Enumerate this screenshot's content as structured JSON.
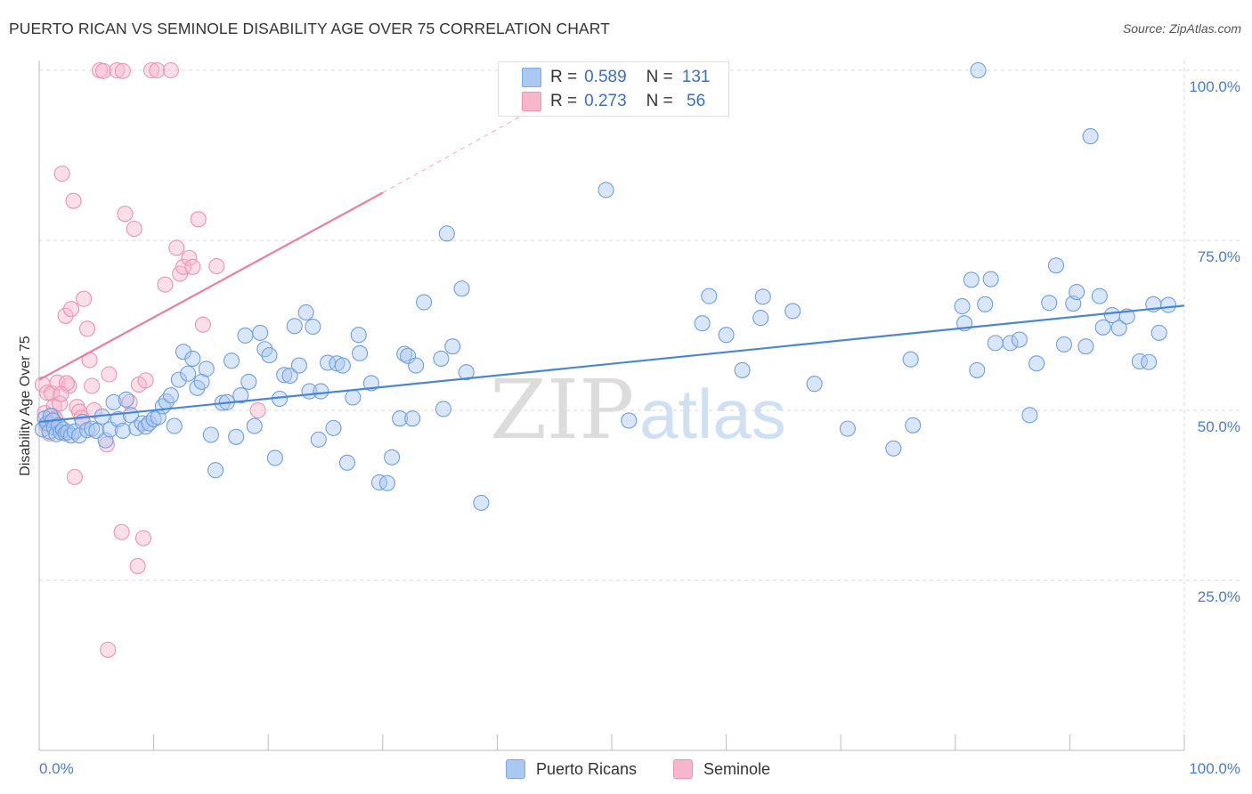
{
  "header": {
    "title": "PUERTO RICAN VS SEMINOLE DISABILITY AGE OVER 75 CORRELATION CHART",
    "source": "Source: ZipAtlas.com"
  },
  "watermark": {
    "zip": "ZIP",
    "atlas": "atlas"
  },
  "legend": {
    "rows": [
      {
        "r_label": "R =",
        "r_value": "0.589",
        "n_label": "N =",
        "n_value": "131",
        "color": "#aac8f0"
      },
      {
        "r_label": "R =",
        "r_value": "0.273",
        "n_label": "N =",
        "n_value": " 56",
        "color": "#f6b7cb"
      }
    ]
  },
  "bottom_legend": [
    {
      "label": "Puerto Ricans",
      "color": "#aac8f0"
    },
    {
      "label": "Seminole",
      "color": "#f6b7cb"
    }
  ],
  "chart_data": {
    "type": "scatter",
    "title": "PUERTO RICAN VS SEMINOLE DISABILITY AGE OVER 75 CORRELATION CHART",
    "xlabel": "",
    "ylabel": "Disability Age Over 75",
    "xlim": [
      0,
      100
    ],
    "ylim": [
      5,
      100
    ],
    "x_tick_labels": [
      "0.0%",
      "100.0%"
    ],
    "y_ticks": [
      25,
      50,
      75,
      100
    ],
    "y_tick_labels": [
      "25.0%",
      "50.0%",
      "75.0%",
      "100.0%"
    ],
    "grid": true,
    "legend_position": "top-center",
    "colors": {
      "puerto_ricans": "#4a86d8",
      "seminole": "#e87ea4",
      "puerto_fill": "#aac8f0",
      "seminole_fill": "#f6b7cb"
    },
    "series": [
      {
        "name": "Puerto Ricans",
        "points": [
          [
            0.3,
            47.2
          ],
          [
            0.5,
            48.8
          ],
          [
            0.7,
            48.1
          ],
          [
            0.9,
            46.9
          ],
          [
            1.0,
            49.2
          ],
          [
            1.2,
            48.5
          ],
          [
            1.3,
            47.5
          ],
          [
            1.5,
            46.5
          ],
          [
            1.7,
            47.8
          ],
          [
            1.9,
            46.8
          ],
          [
            2.1,
            47.2
          ],
          [
            2.3,
            46.6
          ],
          [
            2.5,
            46.8
          ],
          [
            2.8,
            46.3
          ],
          [
            3.1,
            46.9
          ],
          [
            3.5,
            46.3
          ],
          [
            3.8,
            48.3
          ],
          [
            4.2,
            47.1
          ],
          [
            4.6,
            47.3
          ],
          [
            5.0,
            47.0
          ],
          [
            5.5,
            49.1
          ],
          [
            5.8,
            45.6
          ],
          [
            6.2,
            47.2
          ],
          [
            6.5,
            51.2
          ],
          [
            6.9,
            48.7
          ],
          [
            7.3,
            47.0
          ],
          [
            7.6,
            51.6
          ],
          [
            8.0,
            49.3
          ],
          [
            8.5,
            47.4
          ],
          [
            9.0,
            48.1
          ],
          [
            9.3,
            47.6
          ],
          [
            9.6,
            48.1
          ],
          [
            10.0,
            48.7
          ],
          [
            10.4,
            49.0
          ],
          [
            10.8,
            50.6
          ],
          [
            11.1,
            51.3
          ],
          [
            11.5,
            52.2
          ],
          [
            11.8,
            47.7
          ],
          [
            12.2,
            54.5
          ],
          [
            12.6,
            58.6
          ],
          [
            13.0,
            55.4
          ],
          [
            13.4,
            57.6
          ],
          [
            13.8,
            53.3
          ],
          [
            14.2,
            54.2
          ],
          [
            14.6,
            56.1
          ],
          [
            15.0,
            46.4
          ],
          [
            15.4,
            41.2
          ],
          [
            16.0,
            51.1
          ],
          [
            16.4,
            51.2
          ],
          [
            16.8,
            57.3
          ],
          [
            17.2,
            46.1
          ],
          [
            17.6,
            52.2
          ],
          [
            18.0,
            61.0
          ],
          [
            18.3,
            54.2
          ],
          [
            18.8,
            47.7
          ],
          [
            19.3,
            61.4
          ],
          [
            19.7,
            59.0
          ],
          [
            20.1,
            58.1
          ],
          [
            20.6,
            43.0
          ],
          [
            21.0,
            51.7
          ],
          [
            21.4,
            55.2
          ],
          [
            21.9,
            55.1
          ],
          [
            22.3,
            62.4
          ],
          [
            22.7,
            56.6
          ],
          [
            23.3,
            64.4
          ],
          [
            23.6,
            52.8
          ],
          [
            23.9,
            62.3
          ],
          [
            24.4,
            45.7
          ],
          [
            24.6,
            52.8
          ],
          [
            25.2,
            57.0
          ],
          [
            25.7,
            47.4
          ],
          [
            26.0,
            56.9
          ],
          [
            26.5,
            56.6
          ],
          [
            26.9,
            42.3
          ],
          [
            27.4,
            51.9
          ],
          [
            27.9,
            61.1
          ],
          [
            28.0,
            58.4
          ],
          [
            29.0,
            54.0
          ],
          [
            29.7,
            39.4
          ],
          [
            30.4,
            39.3
          ],
          [
            30.8,
            43.1
          ],
          [
            31.5,
            48.8
          ],
          [
            31.9,
            58.3
          ],
          [
            32.2,
            58.0
          ],
          [
            32.6,
            48.8
          ],
          [
            32.9,
            56.6
          ],
          [
            33.6,
            65.9
          ],
          [
            35.1,
            57.6
          ],
          [
            35.3,
            50.2
          ],
          [
            35.6,
            76.0
          ],
          [
            36.1,
            59.4
          ],
          [
            36.9,
            67.9
          ],
          [
            37.3,
            55.6
          ],
          [
            49.5,
            82.4
          ],
          [
            38.6,
            36.4
          ],
          [
            51.5,
            48.5
          ],
          [
            57.9,
            62.8
          ],
          [
            58.5,
            66.8
          ],
          [
            60.0,
            61.1
          ],
          [
            61.4,
            55.9
          ],
          [
            63.0,
            63.6
          ],
          [
            63.2,
            66.7
          ],
          [
            65.8,
            64.6
          ],
          [
            67.7,
            53.9
          ],
          [
            70.6,
            47.3
          ],
          [
            74.6,
            44.4
          ],
          [
            76.1,
            57.5
          ],
          [
            76.3,
            47.8
          ],
          [
            80.6,
            65.3
          ],
          [
            80.8,
            62.8
          ],
          [
            81.4,
            69.2
          ],
          [
            81.9,
            55.9
          ],
          [
            82.6,
            65.6
          ],
          [
            83.1,
            69.3
          ],
          [
            83.5,
            59.9
          ],
          [
            84.8,
            59.9
          ],
          [
            85.6,
            60.4
          ],
          [
            86.5,
            49.3
          ],
          [
            87.1,
            56.9
          ],
          [
            88.2,
            65.8
          ],
          [
            88.8,
            71.3
          ],
          [
            89.5,
            59.7
          ],
          [
            90.3,
            65.7
          ],
          [
            90.6,
            67.4
          ],
          [
            91.4,
            59.4
          ],
          [
            92.6,
            66.8
          ],
          [
            92.9,
            62.2
          ],
          [
            93.7,
            64.0
          ],
          [
            94.3,
            62.1
          ],
          [
            95.0,
            63.8
          ],
          [
            96.1,
            57.2
          ],
          [
            96.9,
            57.1
          ],
          [
            97.3,
            65.6
          ],
          [
            97.8,
            61.4
          ],
          [
            98.6,
            65.5
          ],
          [
            82.0,
            100.0
          ],
          [
            91.8,
            90.3
          ]
        ],
        "trend": {
          "x": [
            0,
            100
          ],
          "y": [
            48.3,
            65.4
          ]
        }
      },
      {
        "name": "Seminole",
        "points": [
          [
            0.3,
            53.8
          ],
          [
            0.5,
            49.6
          ],
          [
            0.6,
            47.9
          ],
          [
            0.7,
            52.6
          ],
          [
            0.8,
            48.2
          ],
          [
            0.9,
            46.6
          ],
          [
            1.1,
            52.5
          ],
          [
            1.2,
            49.2
          ],
          [
            1.3,
            50.6
          ],
          [
            1.4,
            48.8
          ],
          [
            1.6,
            54.1
          ],
          [
            1.8,
            51.0
          ],
          [
            2.0,
            84.8
          ],
          [
            2.3,
            63.9
          ],
          [
            2.6,
            53.6
          ],
          [
            2.8,
            64.9
          ],
          [
            3.0,
            80.8
          ],
          [
            3.1,
            40.2
          ],
          [
            3.3,
            50.5
          ],
          [
            3.5,
            49.8
          ],
          [
            3.7,
            48.9
          ],
          [
            3.9,
            66.4
          ],
          [
            4.2,
            62.0
          ],
          [
            4.4,
            57.4
          ],
          [
            4.6,
            53.6
          ],
          [
            4.8,
            50.0
          ],
          [
            5.3,
            100.0
          ],
          [
            5.6,
            99.9
          ],
          [
            5.9,
            45.0
          ],
          [
            6.1,
            55.3
          ],
          [
            6.8,
            100.0
          ],
          [
            7.3,
            99.9
          ],
          [
            7.2,
            32.1
          ],
          [
            7.5,
            78.9
          ],
          [
            7.9,
            51.2
          ],
          [
            8.3,
            76.7
          ],
          [
            8.6,
            27.1
          ],
          [
            8.7,
            53.8
          ],
          [
            9.1,
            31.2
          ],
          [
            9.3,
            54.4
          ],
          [
            9.8,
            100.0
          ],
          [
            10.3,
            100.0
          ],
          [
            11.0,
            68.5
          ],
          [
            11.5,
            100.0
          ],
          [
            12.0,
            73.9
          ],
          [
            12.3,
            70.1
          ],
          [
            12.6,
            71.1
          ],
          [
            13.1,
            72.4
          ],
          [
            13.4,
            71.1
          ],
          [
            13.9,
            78.1
          ],
          [
            14.3,
            62.6
          ],
          [
            15.5,
            71.2
          ],
          [
            19.1,
            50.0
          ],
          [
            6.0,
            14.8
          ],
          [
            2.4,
            54.0
          ],
          [
            1.9,
            52.4
          ]
        ],
        "trend": {
          "x": [
            0,
            30
          ],
          "y": [
            54.5,
            82.0
          ]
        },
        "trend_extension": {
          "x": [
            30,
            45
          ],
          "y": [
            82.0,
            96.0
          ]
        }
      }
    ]
  }
}
